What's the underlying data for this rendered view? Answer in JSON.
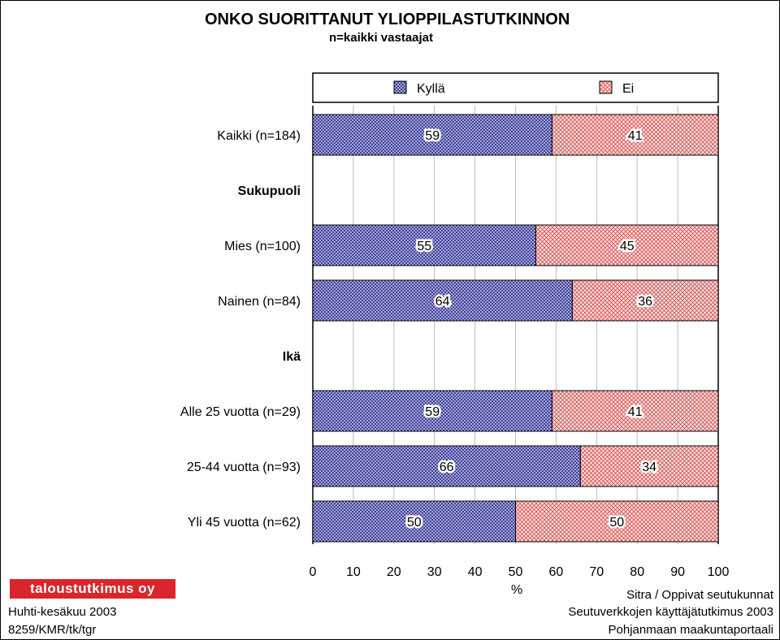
{
  "chart_data": {
    "type": "bar",
    "orientation": "horizontal",
    "stacked": true,
    "title": "ONKO SUORITTANUT YLIOPPILASTUTKINNON",
    "subtitle": "n=kaikki vastaajat",
    "xlabel": "%",
    "xlim": [
      0,
      100
    ],
    "xticks": [
      "0",
      "10",
      "20",
      "30",
      "40",
      "50",
      "60",
      "70",
      "80",
      "90",
      "100"
    ],
    "grid": true,
    "legend_position": "top",
    "rows": [
      {
        "label": "Kaikki (n=184)",
        "kind": "data",
        "values": [
          59,
          41
        ]
      },
      {
        "label": "Sukupuoli",
        "kind": "header"
      },
      {
        "label": "Mies (n=100)",
        "kind": "data",
        "values": [
          55,
          45
        ]
      },
      {
        "label": "Nainen (n=84)",
        "kind": "data",
        "values": [
          64,
          36
        ]
      },
      {
        "label": "Ikä",
        "kind": "header"
      },
      {
        "label": "Alle 25 vuotta (n=29)",
        "kind": "data",
        "values": [
          59,
          41
        ]
      },
      {
        "label": "25-44 vuotta (n=93)",
        "kind": "data",
        "values": [
          66,
          34
        ]
      },
      {
        "label": "Yli 45 vuotta (n=62)",
        "kind": "data",
        "values": [
          50,
          50
        ]
      }
    ],
    "series": [
      {
        "name": "Kyllä",
        "color": "#3a3aa0"
      },
      {
        "name": "Ei",
        "color": "#d06060"
      }
    ]
  },
  "branding": {
    "logo_text": "taloustutkimus oy",
    "date": "Huhti-kesäkuu 2003",
    "code": "8259/KMR/tk/tgr"
  },
  "source": {
    "line1": "Sitra / Oppivat seutukunnat",
    "line2": "Seutuverkkojen käyttäjätutkimus 2003",
    "line3": "Pohjanmaan maakuntaportaali"
  }
}
